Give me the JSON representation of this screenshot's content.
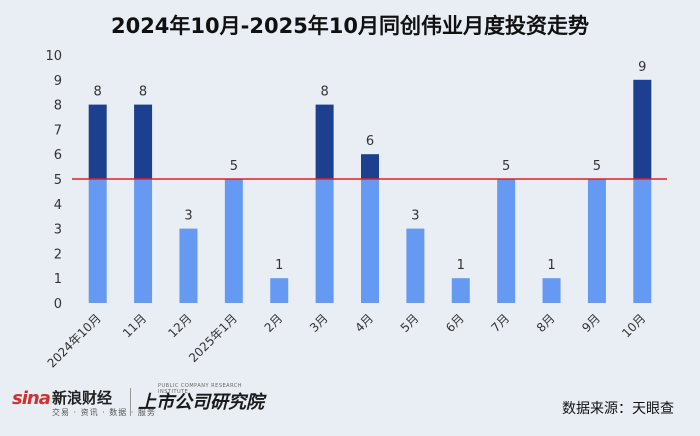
{
  "chart_data": {
    "type": "bar",
    "title": "2024年10月-2025年10月同创伟业月度投资走势",
    "categories": [
      "2024年10月",
      "11月",
      "12月",
      "2025年1月",
      "2月",
      "3月",
      "4月",
      "5月",
      "6月",
      "7月",
      "8月",
      "9月",
      "10月"
    ],
    "values": [
      8,
      8,
      3,
      5,
      1,
      8,
      6,
      3,
      1,
      5,
      1,
      5,
      9
    ],
    "ylim": [
      0,
      10
    ],
    "yticks": [
      0,
      1,
      2,
      3,
      4,
      5,
      6,
      7,
      8,
      9,
      10
    ],
    "reference_line": 5,
    "grid": false,
    "legend": false,
    "colors": {
      "below_reference": "#6699f2",
      "above_reference": "#1c3f8f",
      "reference_line": "#e02020"
    }
  },
  "footer": {
    "sina_logo": "sina",
    "sina_name": "新浪财经",
    "sina_sub": "交易 · 资讯 · 数据 · 服务",
    "institute_logo": "上市公司研究院",
    "institute_sub": "PUBLIC COMPANY RESEARCH INSTITUTE",
    "source": "数据来源：天眼查"
  }
}
